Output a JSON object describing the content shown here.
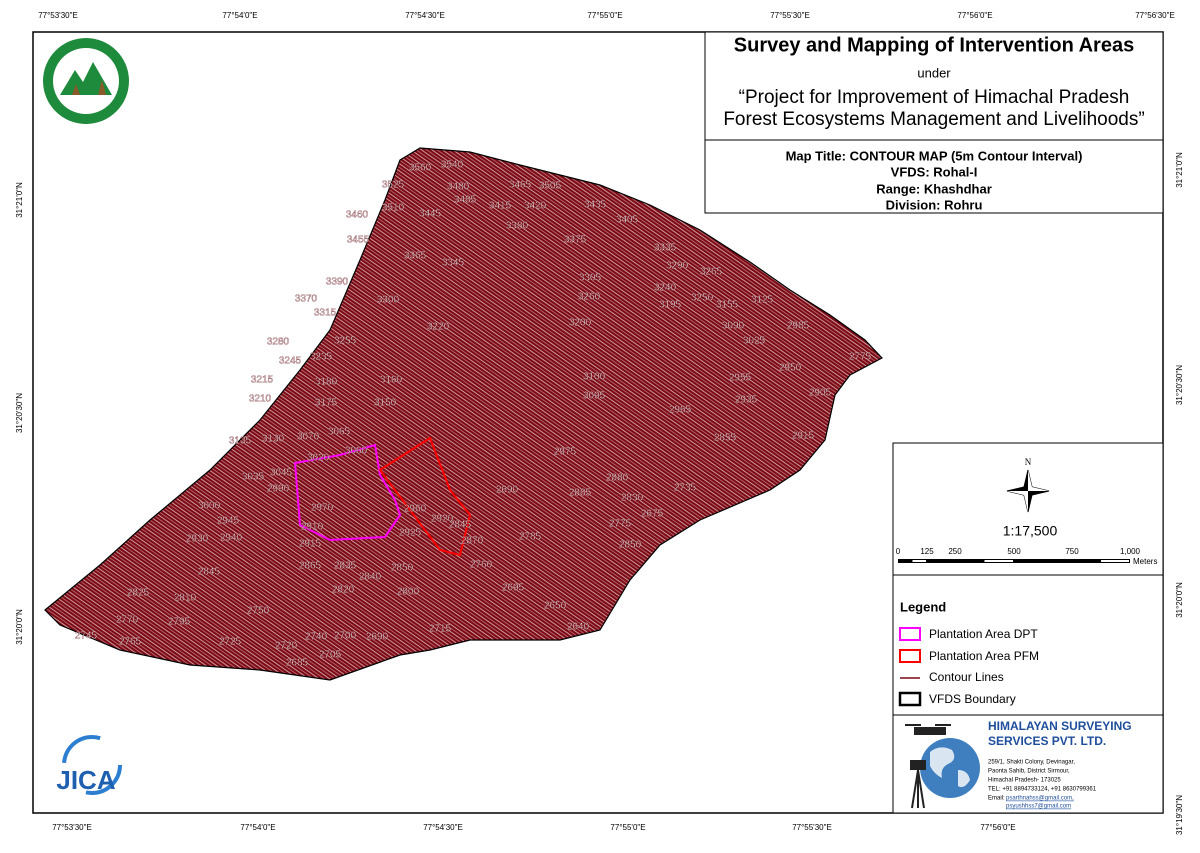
{
  "header": {
    "title": "Survey and Mapping of Intervention Areas",
    "under": "under",
    "project_line1": "“Project for Improvement of Himachal Pradesh",
    "project_line2": "Forest Ecosystems Management and Livelihoods”"
  },
  "map_info": {
    "map_title": "Map Title: CONTOUR MAP (5m Contour Interval)",
    "vfds": "VFDS: Rohal-I",
    "range": "Range: Khashdhar",
    "division": "Division: Rohru"
  },
  "coordinates": {
    "top": [
      "77°53'30\"E",
      "77°54'0\"E",
      "77°54'30\"E",
      "77°55'0\"E",
      "77°55'30\"E",
      "77°56'0\"E",
      "77°56'30\"E"
    ],
    "bottom": [
      "77°53'30\"E",
      "77°54'0\"E",
      "77°54'30\"E",
      "77°55'0\"E",
      "77°55'30\"E",
      "77°56'0\"E"
    ],
    "left": [
      "31°21'0\"N",
      "31°20'30\"N",
      "31°20'0\"N"
    ],
    "right": [
      "31°21'0\"N",
      "31°20'30\"N",
      "31°20'0\"N",
      "31°19'30\"N"
    ]
  },
  "contour_labels": [
    "3560",
    "3540",
    "3525",
    "3480",
    "3465",
    "3505",
    "3510",
    "3445",
    "3485",
    "3415",
    "3420",
    "3435",
    "3460",
    "3455",
    "3380",
    "3405",
    "3375",
    "3365",
    "3345",
    "3335",
    "3290",
    "3265",
    "3390",
    "3305",
    "3240",
    "3370",
    "3300",
    "3260",
    "3250",
    "3195",
    "3155",
    "3125",
    "3315",
    "3200",
    "3220",
    "3090",
    "2985",
    "3025",
    "3280",
    "3255",
    "3245",
    "3235",
    "2775",
    "2950",
    "3215",
    "3180",
    "3160",
    "3100",
    "2955",
    "2905",
    "3210",
    "3175",
    "3150",
    "3095",
    "2935",
    "2965",
    "3135",
    "3130",
    "3070",
    "3065",
    "2855",
    "2915",
    "2975",
    "3020",
    "3060",
    "3035",
    "3045",
    "2880",
    "2990",
    "2735",
    "2690",
    "2885",
    "2830",
    "3000",
    "2970",
    "2960",
    "2920",
    "2845",
    "2945",
    "2870",
    "2775",
    "2675",
    "2910",
    "2925",
    "2930",
    "2940",
    "2915",
    "2785",
    "2850",
    "2865",
    "2835",
    "2850",
    "2840",
    "2760",
    "2845",
    "2820",
    "2800",
    "2695",
    "2825",
    "2810",
    "2750",
    "2650",
    "2770",
    "2795",
    "2715",
    "2640",
    "2745",
    "2765",
    "2725",
    "2740",
    "2700",
    "2690",
    "2720",
    "2705",
    "2685"
  ],
  "north": "N",
  "scale": {
    "ratio": "1:17,500",
    "ticks": [
      "0",
      "125",
      "250",
      "500",
      "750",
      "1,000"
    ],
    "unit": "Meters"
  },
  "legend": {
    "title": "Legend",
    "items": [
      "Plantation Area DPT",
      "Plantation Area PFM",
      "Contour Lines",
      "VFDS Boundary"
    ]
  },
  "company": {
    "name_line1": "HIMALAYAN SURVEYING",
    "name_line2": "SERVICES PVT. LTD.",
    "address": [
      "259/1, Shakti Colony, Devinagar,",
      "Paonta Sahib, District Sirmour,",
      "Himachal Pradesh- 173025",
      "TEL: +91 8894733124, +91 8630799361"
    ],
    "email_label": "Email:",
    "emails": [
      "psarthnahss@gmail.com,",
      "psyushhss7@gmail.com"
    ]
  },
  "logos": {
    "jica": "JICA"
  }
}
